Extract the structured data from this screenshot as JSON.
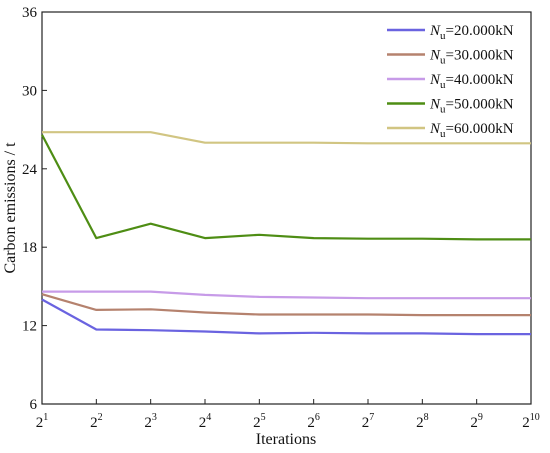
{
  "chart_data": {
    "type": "line",
    "title": "",
    "xlabel": "Iterations",
    "ylabel": "Carbon emissions / t",
    "x": [
      1,
      2,
      3,
      4,
      5,
      6,
      7,
      8,
      9,
      10
    ],
    "x_tick_labels": [
      "2^1",
      "2^2",
      "2^3",
      "2^4",
      "2^5",
      "2^6",
      "2^7",
      "2^8",
      "2^9",
      "2^10"
    ],
    "x_tick_base": "2",
    "x_tick_exponents": [
      "1",
      "2",
      "3",
      "4",
      "5",
      "6",
      "7",
      "8",
      "9",
      "10"
    ],
    "ylim": [
      6,
      36
    ],
    "y_ticks": [
      6,
      12,
      18,
      24,
      30,
      36
    ],
    "grid": false,
    "legend_position": "top-right",
    "series": [
      {
        "name": "Nu=20.000kN",
        "name_symbol": "N",
        "name_subscript": "u",
        "name_value": "=20.000kN",
        "color": "#6a63e0",
        "values": [
          14.0,
          11.7,
          11.65,
          11.55,
          11.4,
          11.45,
          11.4,
          11.4,
          11.35,
          11.35
        ]
      },
      {
        "name": "Nu=30.000kN",
        "name_symbol": "N",
        "name_subscript": "u",
        "name_value": "=30.000kN",
        "color": "#b5826e",
        "values": [
          14.4,
          13.2,
          13.25,
          13.0,
          12.85,
          12.85,
          12.85,
          12.8,
          12.8,
          12.8
        ]
      },
      {
        "name": "Nu=40.000kN",
        "name_symbol": "N",
        "name_subscript": "u",
        "name_value": "=40.000kN",
        "color": "#c79be8",
        "values": [
          14.6,
          14.6,
          14.6,
          14.35,
          14.2,
          14.15,
          14.1,
          14.1,
          14.1,
          14.1
        ]
      },
      {
        "name": "Nu=50.000kN",
        "name_symbol": "N",
        "name_subscript": "u",
        "name_value": "=50.000kN",
        "color": "#4e8d14",
        "values": [
          26.6,
          18.7,
          19.8,
          18.7,
          18.95,
          18.7,
          18.65,
          18.65,
          18.6,
          18.6
        ]
      },
      {
        "name": "Nu=60.000kN",
        "name_symbol": "N",
        "name_subscript": "u",
        "name_value": "=60.000kN",
        "color": "#d1c582",
        "values": [
          26.8,
          26.8,
          26.8,
          26.0,
          26.0,
          26.0,
          25.95,
          25.95,
          25.95,
          25.95
        ]
      }
    ]
  }
}
